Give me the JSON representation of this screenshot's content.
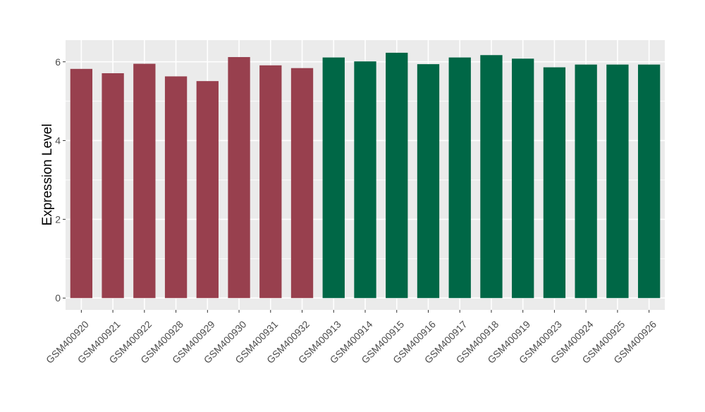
{
  "chart_data": {
    "type": "bar",
    "ylabel": "Expression Level",
    "xlabel": "",
    "ylim": [
      -0.3,
      6.55
    ],
    "yticks": [
      0,
      2,
      4,
      6
    ],
    "grid": true,
    "categories": [
      "GSM400920",
      "GSM400921",
      "GSM400922",
      "GSM400928",
      "GSM400929",
      "GSM400930",
      "GSM400931",
      "GSM400932",
      "GSM400913",
      "GSM400914",
      "GSM400915",
      "GSM400916",
      "GSM400917",
      "GSM400918",
      "GSM400919",
      "GSM400923",
      "GSM400924",
      "GSM400925",
      "GSM400926"
    ],
    "values": [
      5.82,
      5.71,
      5.95,
      5.63,
      5.51,
      6.12,
      5.91,
      5.84,
      6.11,
      6.01,
      6.23,
      5.94,
      6.11,
      6.17,
      6.08,
      5.86,
      5.93,
      5.93,
      5.93
    ],
    "groups": [
      "a",
      "a",
      "a",
      "a",
      "a",
      "a",
      "a",
      "a",
      "b",
      "b",
      "b",
      "b",
      "b",
      "b",
      "b",
      "b",
      "b",
      "b",
      "b"
    ],
    "group_colors": {
      "a": "#98404E",
      "b": "#006746"
    },
    "panel_background": "#EBEBEB",
    "gridline_color": "#FFFFFF"
  }
}
